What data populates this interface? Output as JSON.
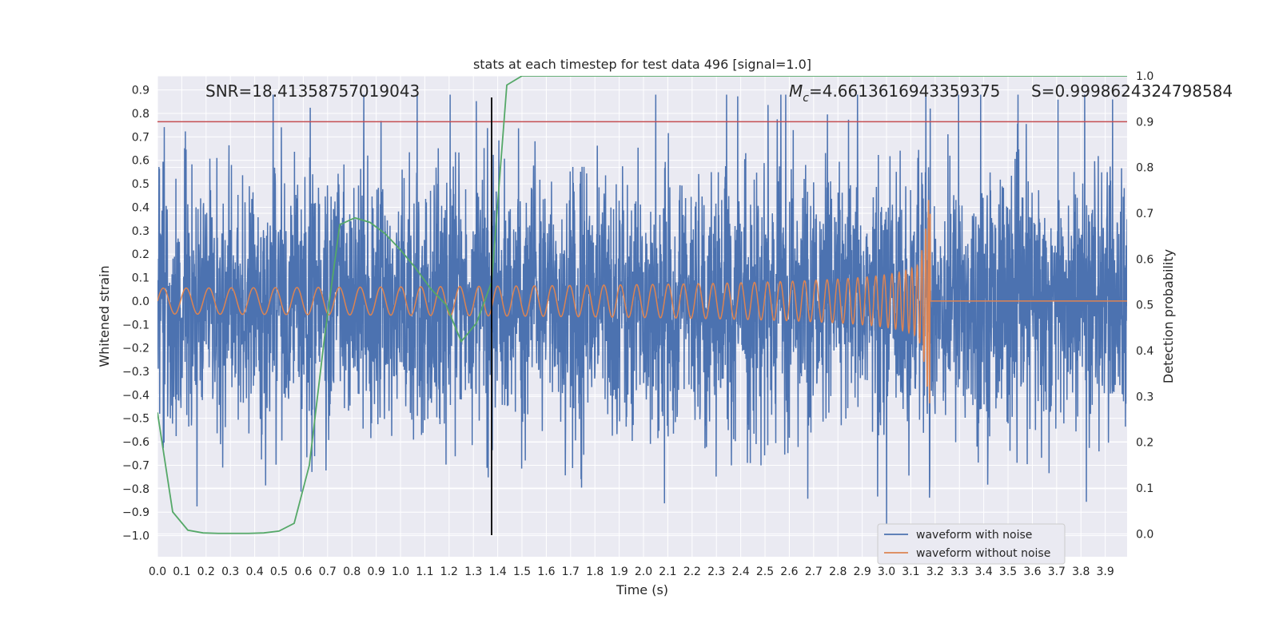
{
  "chart_data": {
    "type": "line",
    "title": "stats at each timestep for test data 496 [signal=1.0]",
    "xlabel": "Time (s)",
    "ylabel_left": "Whitened strain",
    "ylabel_right": "Detection probability",
    "xlim": [
      0.0,
      3.99
    ],
    "ylim_left": [
      -1.09,
      0.96
    ],
    "ylim_right": [
      -0.05,
      1.0
    ],
    "x_ticks": [
      "0.0",
      "0.1",
      "0.2",
      "0.3",
      "0.4",
      "0.5",
      "0.6",
      "0.7",
      "0.8",
      "0.9",
      "1.0",
      "1.1",
      "1.2",
      "1.3",
      "1.4",
      "1.5",
      "1.6",
      "1.7",
      "1.8",
      "1.9",
      "2.0",
      "2.1",
      "2.2",
      "2.3",
      "2.4",
      "2.5",
      "2.6",
      "2.7",
      "2.8",
      "2.9",
      "3.0",
      "3.1",
      "3.2",
      "3.3",
      "3.4",
      "3.5",
      "3.6",
      "3.7",
      "3.8",
      "3.9"
    ],
    "y_ticks_left": [
      "0.9",
      "0.8",
      "0.7",
      "0.6",
      "0.5",
      "0.4",
      "0.3",
      "0.2",
      "0.1",
      "0.0",
      "−0.1",
      "−0.2",
      "−0.3",
      "−0.4",
      "−0.5",
      "−0.6",
      "−0.7",
      "−0.8",
      "−0.9",
      "−1.0"
    ],
    "y_ticks_right": [
      "1.0",
      "0.9",
      "0.8",
      "0.7",
      "0.6",
      "0.5",
      "0.4",
      "0.3",
      "0.2",
      "0.1",
      "0.0"
    ],
    "grid": true,
    "legend_position": "lower-right",
    "annotations": {
      "snr": "SNR=18.41358757019043",
      "mc_symbol": "M",
      "mc_subscript": "c",
      "mc_value": "=4.6613616943359375",
      "s": "S=0.9998624324798584"
    },
    "threshold_line": {
      "axis": "right",
      "y": 0.9,
      "color": "#c44e52"
    },
    "vertical_marker": {
      "x": 1.375,
      "color": "#000000"
    },
    "merger_time": 3.18,
    "series": [
      {
        "name": "waveform with noise",
        "axis": "left",
        "color": "#4c72b0",
        "description_values": {
          "amplitude_range": [
            -1.0,
            0.88
          ],
          "typical_std": 0.3
        }
      },
      {
        "name": "waveform without noise",
        "axis": "left",
        "color": "#dd8452",
        "description_values": {
          "initial_amplitude": 0.055,
          "peak_amplitude": 0.44,
          "peak_time": 3.18
        }
      },
      {
        "axis": "right",
        "color": "#55a868",
        "x": [
          0.0,
          0.0625,
          0.125,
          0.1875,
          0.25,
          0.3125,
          0.375,
          0.4375,
          0.5,
          0.5625,
          0.625,
          0.6875,
          0.75,
          0.8125,
          0.875,
          0.9375,
          1.0,
          1.0625,
          1.125,
          1.1875,
          1.25,
          1.3125,
          1.375,
          1.4375,
          1.5,
          3.99
        ],
        "y": [
          0.265,
          0.048,
          0.008,
          0.002,
          0.001,
          0.001,
          0.001,
          0.002,
          0.006,
          0.023,
          0.15,
          0.43,
          0.675,
          0.69,
          0.68,
          0.655,
          0.62,
          0.58,
          0.535,
          0.5,
          0.42,
          0.46,
          0.55,
          0.98,
          1.0,
          1.0
        ]
      }
    ]
  }
}
